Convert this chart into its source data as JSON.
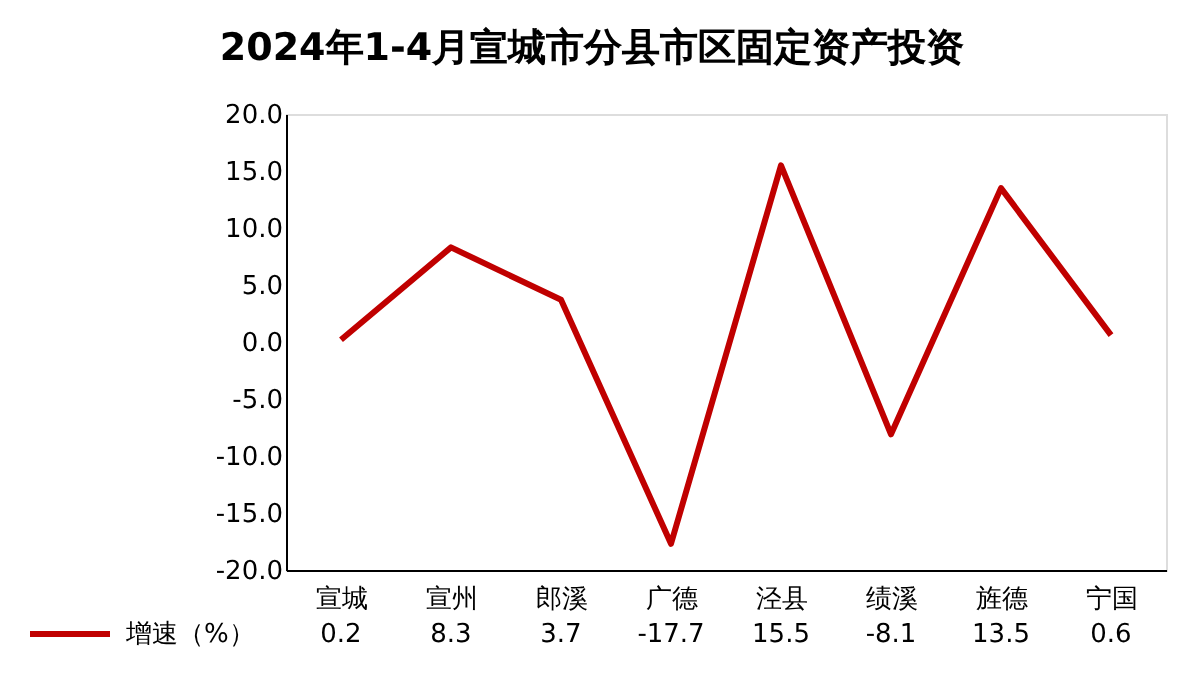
{
  "chart_data": {
    "type": "line",
    "title": "2024年1-4月宣城市分县市区固定资产投资",
    "categories": [
      "宣城",
      "宣州",
      "郎溪",
      "广德",
      "泾县",
      "绩溪",
      "旌德",
      "宁国"
    ],
    "series": [
      {
        "name": "增速（%）",
        "color": "#c00000",
        "values": [
          0.2,
          8.3,
          3.7,
          -17.7,
          15.5,
          -8.1,
          13.5,
          0.6
        ]
      }
    ],
    "ylim": [
      -20,
      20
    ],
    "yticks": [
      {
        "value": -20,
        "label": "-20.0"
      },
      {
        "value": -15,
        "label": "-15.0"
      },
      {
        "value": -10,
        "label": "-10.0"
      },
      {
        "value": -5,
        "label": "-5.0"
      },
      {
        "value": 0,
        "label": "0.0"
      },
      {
        "value": 5,
        "label": "5.0"
      },
      {
        "value": 10,
        "label": "10.0"
      },
      {
        "value": 15,
        "label": "15.0"
      },
      {
        "value": 20,
        "label": "20.0"
      }
    ],
    "data_labels": true,
    "grid": false,
    "legend": "bottom left",
    "marker": "none",
    "line_style": "solid"
  }
}
